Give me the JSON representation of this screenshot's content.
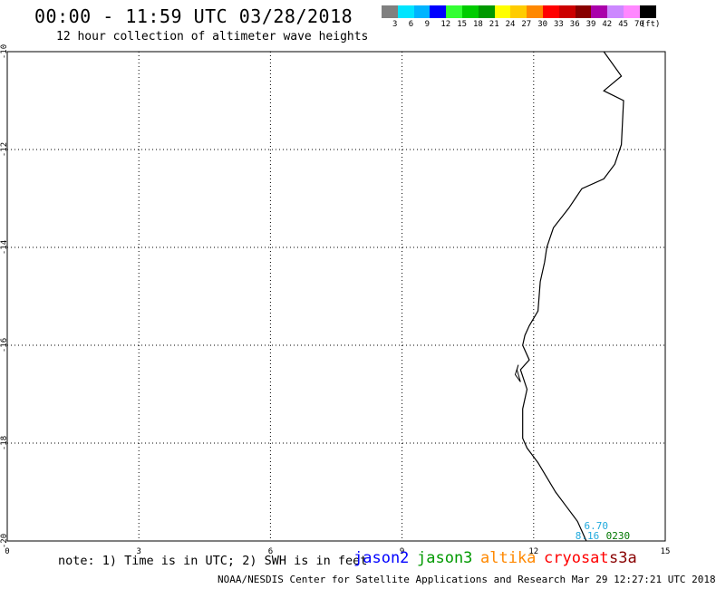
{
  "title": "00:00 - 11:59 UTC 03/28/2018",
  "subtitle": "12 hour collection of altimeter wave heights",
  "colorbar": {
    "colors": [
      "#808080",
      "#00e5ff",
      "#00b4ff",
      "#0000ff",
      "#33ff33",
      "#00cc00",
      "#009900",
      "#ffff00",
      "#ffcc00",
      "#ff8800",
      "#ff0000",
      "#cc0000",
      "#880000",
      "#aa00aa",
      "#cc88ff",
      "#ff88ff",
      "#000000"
    ],
    "labels": [
      "3",
      "6",
      "9",
      "12",
      "15",
      "18",
      "21",
      "24",
      "27",
      "30",
      "33",
      "36",
      "39",
      "42",
      "45",
      "70",
      "(ft)"
    ]
  },
  "map": {
    "lon_ticks": [
      "0",
      "3",
      "6",
      "9",
      "12",
      "15"
    ],
    "lat_ticks": [
      "-10",
      "-12",
      "-14",
      "-16",
      "-18",
      "-20"
    ],
    "lon_range": [
      0,
      15
    ],
    "lat_range": [
      -20,
      -10
    ],
    "grid": true,
    "coastline": [
      [
        13.6,
        -10.0
      ],
      [
        14.0,
        -10.5
      ],
      [
        13.6,
        -10.8
      ],
      [
        14.05,
        -11.0
      ],
      [
        14.0,
        -11.9
      ],
      [
        13.85,
        -12.3
      ],
      [
        13.6,
        -12.6
      ],
      [
        13.1,
        -12.8
      ],
      [
        12.8,
        -13.2
      ],
      [
        12.45,
        -13.6
      ],
      [
        12.3,
        -14.0
      ],
      [
        12.25,
        -14.3
      ],
      [
        12.15,
        -14.7
      ],
      [
        12.1,
        -15.3
      ],
      [
        11.9,
        -15.6
      ],
      [
        11.8,
        -15.8
      ],
      [
        11.75,
        -16.0
      ],
      [
        11.9,
        -16.3
      ],
      [
        11.7,
        -16.5
      ],
      [
        11.85,
        -16.9
      ],
      [
        11.75,
        -17.3
      ],
      [
        11.75,
        -17.9
      ],
      [
        11.85,
        -18.1
      ],
      [
        12.1,
        -18.4
      ],
      [
        12.3,
        -18.7
      ],
      [
        12.5,
        -19.0
      ],
      [
        12.75,
        -19.3
      ],
      [
        13.0,
        -19.6
      ],
      [
        13.2,
        -20.0
      ]
    ],
    "island": [
      [
        11.65,
        -16.4
      ],
      [
        11.58,
        -16.6
      ],
      [
        11.7,
        -16.75
      ],
      [
        11.62,
        -16.5
      ]
    ],
    "track_labels": [
      {
        "text": "6.70",
        "lon": 13.15,
        "lat": -19.76,
        "color": "#22aadd"
      },
      {
        "text": "8.16",
        "lon": 12.95,
        "lat": -19.96,
        "color": "#22aadd"
      },
      {
        "text": "0230",
        "lon": 13.65,
        "lat": -19.96,
        "color": "#007700"
      }
    ]
  },
  "note": "note: 1) Time is in UTC; 2) SWH is in feet",
  "satellites": [
    {
      "name": "jason2",
      "color": "#0000ff"
    },
    {
      "name": "jason3",
      "color": "#009900"
    },
    {
      "name": "altika",
      "color": "#ff8800"
    },
    {
      "name": "cryosat",
      "color": "#ff0000"
    },
    {
      "name": "s3a",
      "color": "#880000"
    }
  ],
  "footer": "NOAA/NESDIS Center for Satellite Applications and Research   Mar 29 12:27:21 UTC 2018"
}
